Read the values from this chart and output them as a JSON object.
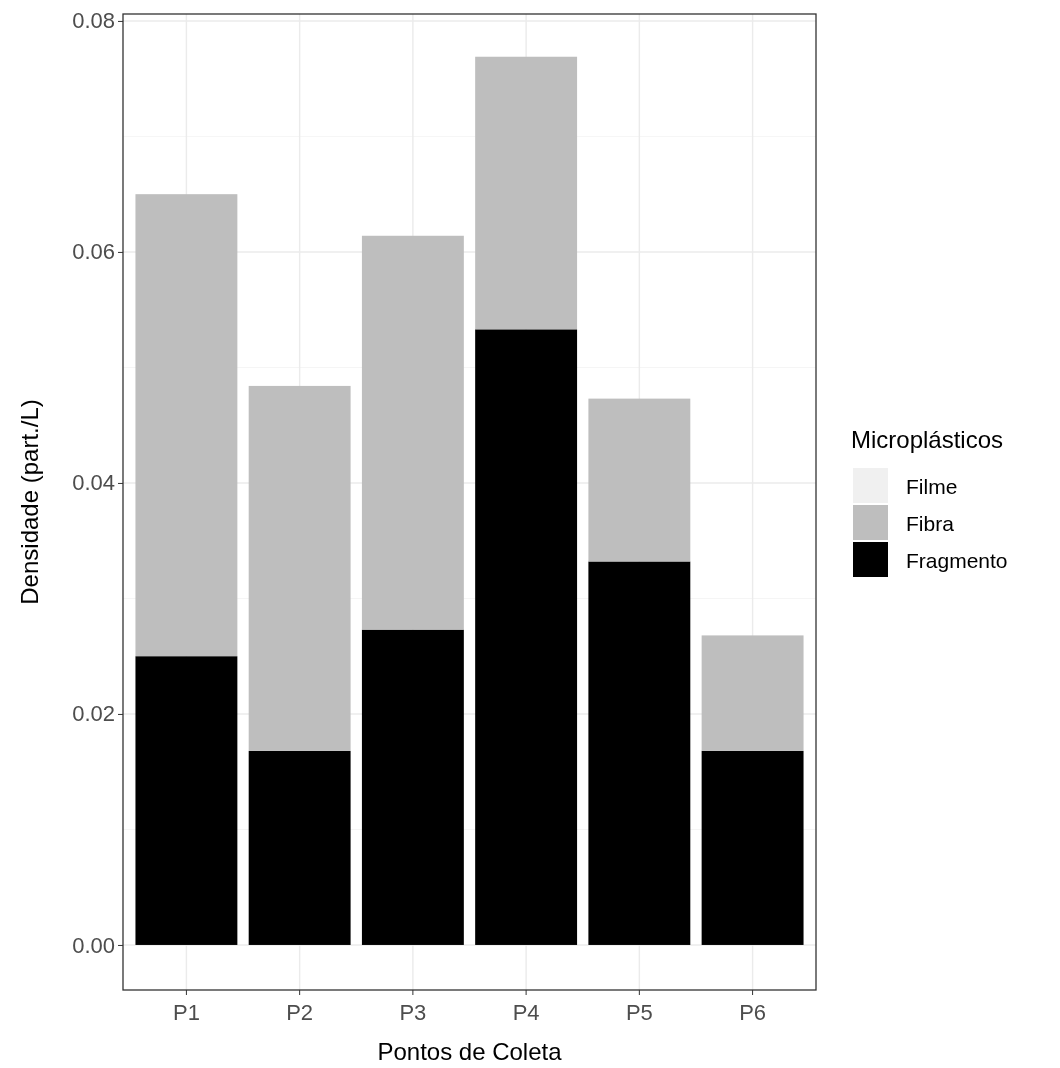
{
  "chart_data": {
    "type": "bar",
    "stacked": true,
    "xlabel": "Pontos de Coleta",
    "ylabel": "Densidade (part./L)",
    "legend_title": "Microplásticos",
    "categories": [
      "P1",
      "P2",
      "P3",
      "P4",
      "P5",
      "P6"
    ],
    "series": [
      {
        "name": "Fragmento",
        "color": "#000000",
        "values": [
          0.025,
          0.0168,
          0.0273,
          0.0533,
          0.0332,
          0.0168
        ]
      },
      {
        "name": "Fibra",
        "color": "#bebebe",
        "values": [
          0.04,
          0.0316,
          0.0341,
          0.0236,
          0.0141,
          0.01
        ]
      },
      {
        "name": "Filme",
        "color": "#f0f0f0",
        "values": [
          0,
          0,
          0,
          0,
          0,
          0
        ]
      }
    ],
    "ylim": [
      -0.0039,
      0.0806
    ],
    "yticks": [
      {
        "value": 0,
        "label": "0.00"
      },
      {
        "value": 0.02,
        "label": "0.02"
      },
      {
        "value": 0.04,
        "label": "0.04"
      },
      {
        "value": 0.06,
        "label": "0.06"
      },
      {
        "value": 0.08,
        "label": "0.08"
      }
    ],
    "grid": true,
    "legend": "right"
  }
}
